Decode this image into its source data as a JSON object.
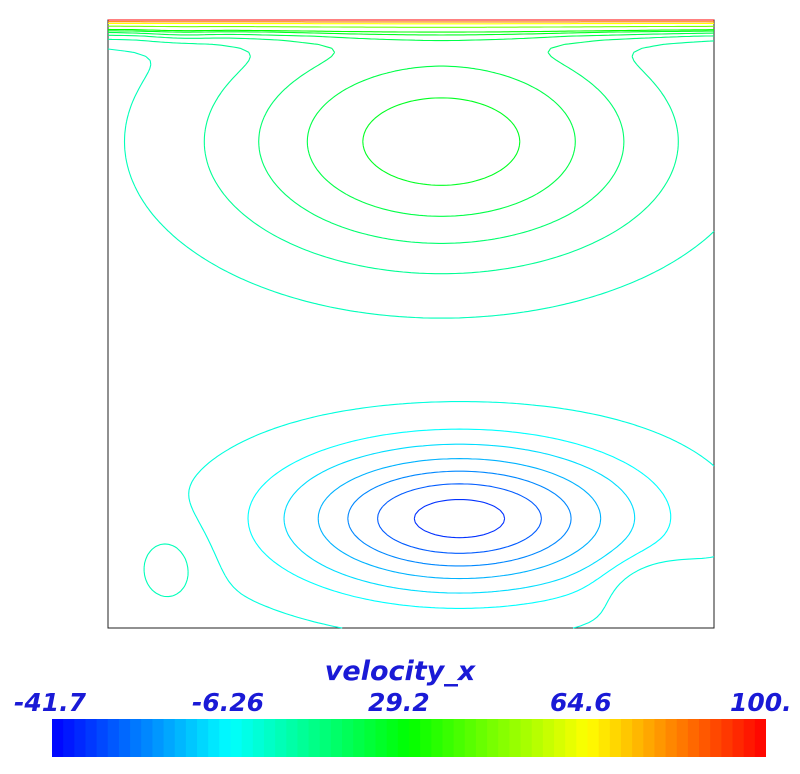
{
  "chart_data": {
    "type": "contour",
    "variable": "velocity_x",
    "colorbar": {
      "title": "velocity_x",
      "min": -41.7,
      "max": 100,
      "tick_labels": [
        "-41.7",
        "-6.26",
        "29.2",
        "64.6",
        "100."
      ],
      "tick_values": [
        -41.7,
        -6.26,
        29.2,
        64.6,
        100
      ],
      "colormap": [
        "#0000ff",
        "#00ffff",
        "#00ff00",
        "#ffff00",
        "#ff0000"
      ]
    },
    "contour_levels": [
      -35,
      -29,
      -23,
      -17,
      -11,
      -6.26,
      -1.5,
      3.4,
      8.6,
      13.9,
      19.2,
      24.6,
      29.2,
      45,
      64.6,
      82,
      100
    ],
    "features": {
      "lid_max": 100,
      "upper_vortex_peak": 28,
      "lower_vortex_min": -38,
      "corner_eddies": [
        "top-left",
        "bottom-left",
        "bottom-right"
      ]
    }
  }
}
